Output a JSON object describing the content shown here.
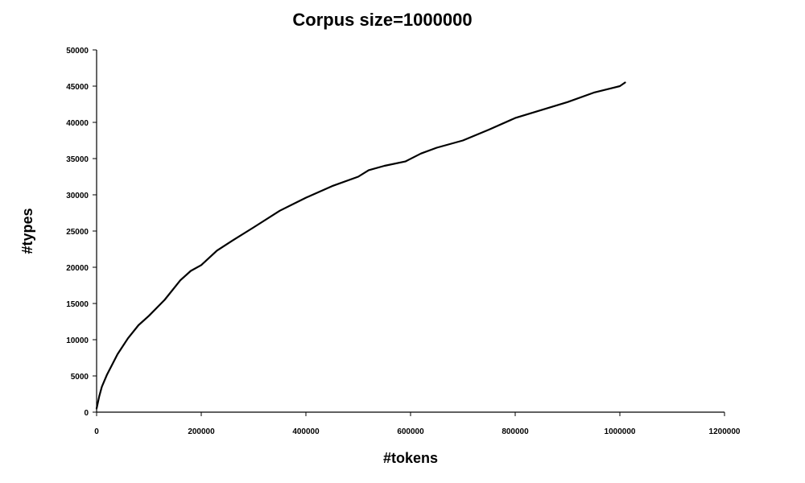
{
  "chart_data": {
    "type": "line",
    "title": "Corpus size=1000000",
    "xlabel": "#tokens",
    "ylabel": "#types",
    "xlim": [
      0,
      1200000
    ],
    "ylim": [
      0,
      50000
    ],
    "x_ticks": [
      "0",
      "200000",
      "400000",
      "600000",
      "800000",
      "1000000",
      "1200000"
    ],
    "y_ticks": [
      "0",
      "5000",
      "10000",
      "15000",
      "20000",
      "25000",
      "30000",
      "35000",
      "40000",
      "45000",
      "50000"
    ],
    "grid": false,
    "legend": "none",
    "series": [
      {
        "color": "#000000",
        "x": [
          0,
          5000,
          10000,
          20000,
          40000,
          60000,
          80000,
          100000,
          130000,
          160000,
          180000,
          200000,
          230000,
          260000,
          300000,
          350000,
          400000,
          450000,
          500000,
          520000,
          550000,
          590000,
          620000,
          650000,
          700000,
          750000,
          800000,
          850000,
          900000,
          950000,
          1000000,
          1010000
        ],
        "y": [
          500,
          2200,
          3500,
          5200,
          8000,
          10200,
          12000,
          13300,
          15500,
          18200,
          19500,
          20300,
          22300,
          23700,
          25500,
          27800,
          29600,
          31200,
          32500,
          33400,
          34000,
          34600,
          35700,
          36500,
          37500,
          39000,
          40600,
          41700,
          42800,
          44100,
          45000,
          45500
        ]
      }
    ]
  }
}
